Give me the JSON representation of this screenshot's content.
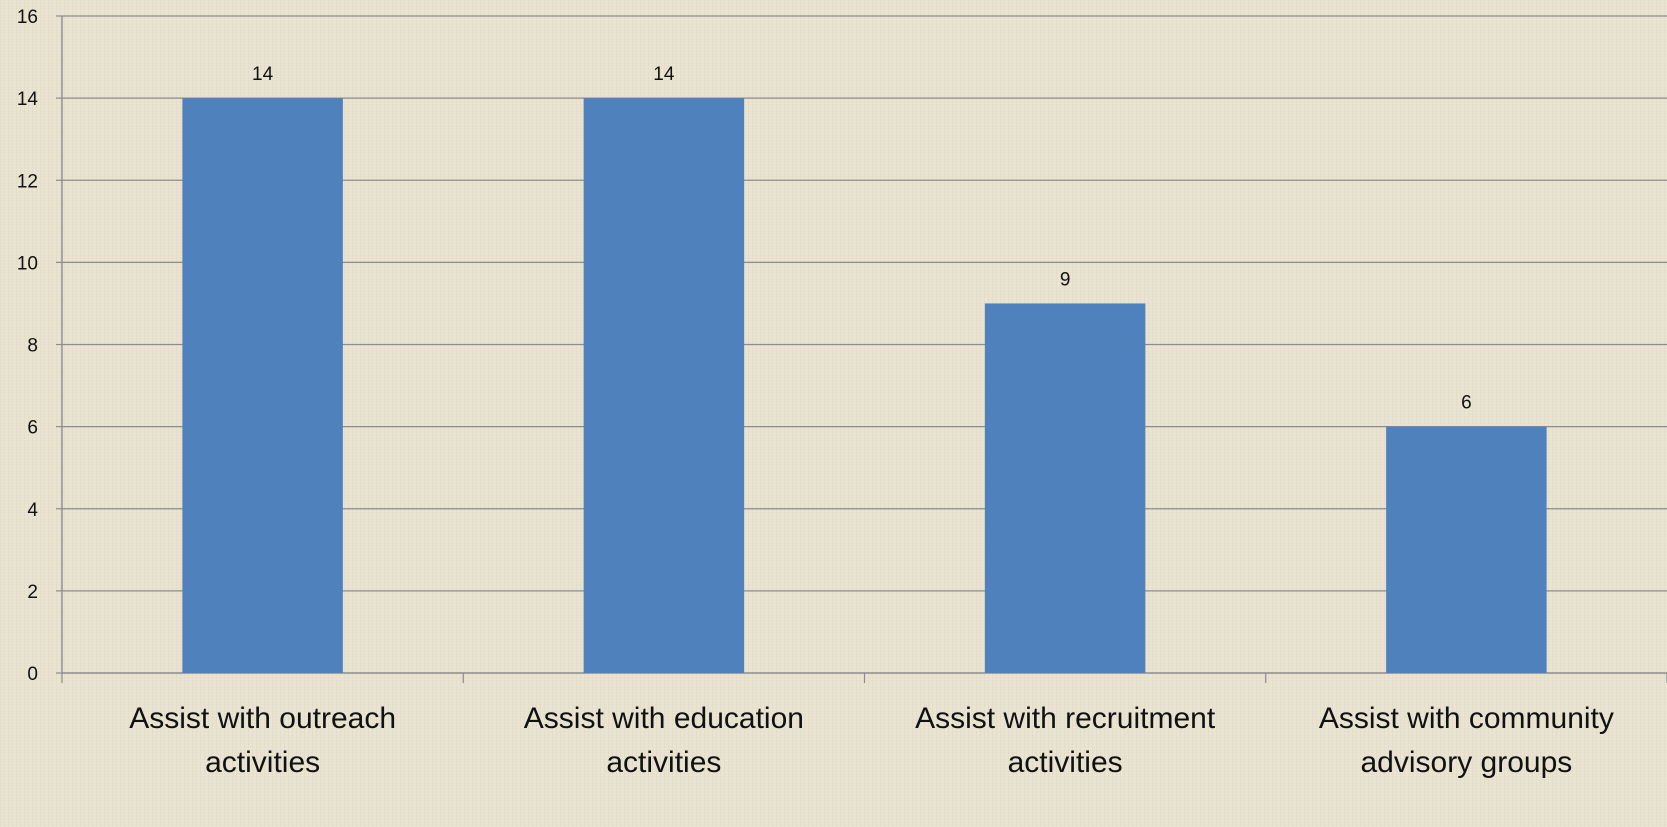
{
  "chart_data": {
    "type": "bar",
    "categories": [
      [
        "Assist with outreach",
        "activities"
      ],
      [
        "Assist with education",
        "activities"
      ],
      [
        "Assist with recruitment",
        "activities"
      ],
      [
        "Assist with community",
        "advisory groups"
      ]
    ],
    "values": [
      14,
      14,
      9,
      6
    ],
    "data_labels": [
      "14",
      "14",
      "9",
      "6"
    ],
    "ylim": [
      0,
      16
    ],
    "yticks": [
      "0",
      "2",
      "4",
      "6",
      "8",
      "10",
      "12",
      "16"
    ],
    "ytick_values": [
      0,
      2,
      4,
      6,
      8,
      10,
      12,
      16
    ],
    "yticks_all": [
      "0",
      "2",
      "4",
      "6",
      "8",
      "10",
      "12",
      "14",
      "16"
    ],
    "grid": true,
    "legend": "none",
    "colors": {
      "bar": "#4f81bd",
      "grid": "#8c8c8c",
      "axis": "#8c8c8c"
    }
  }
}
